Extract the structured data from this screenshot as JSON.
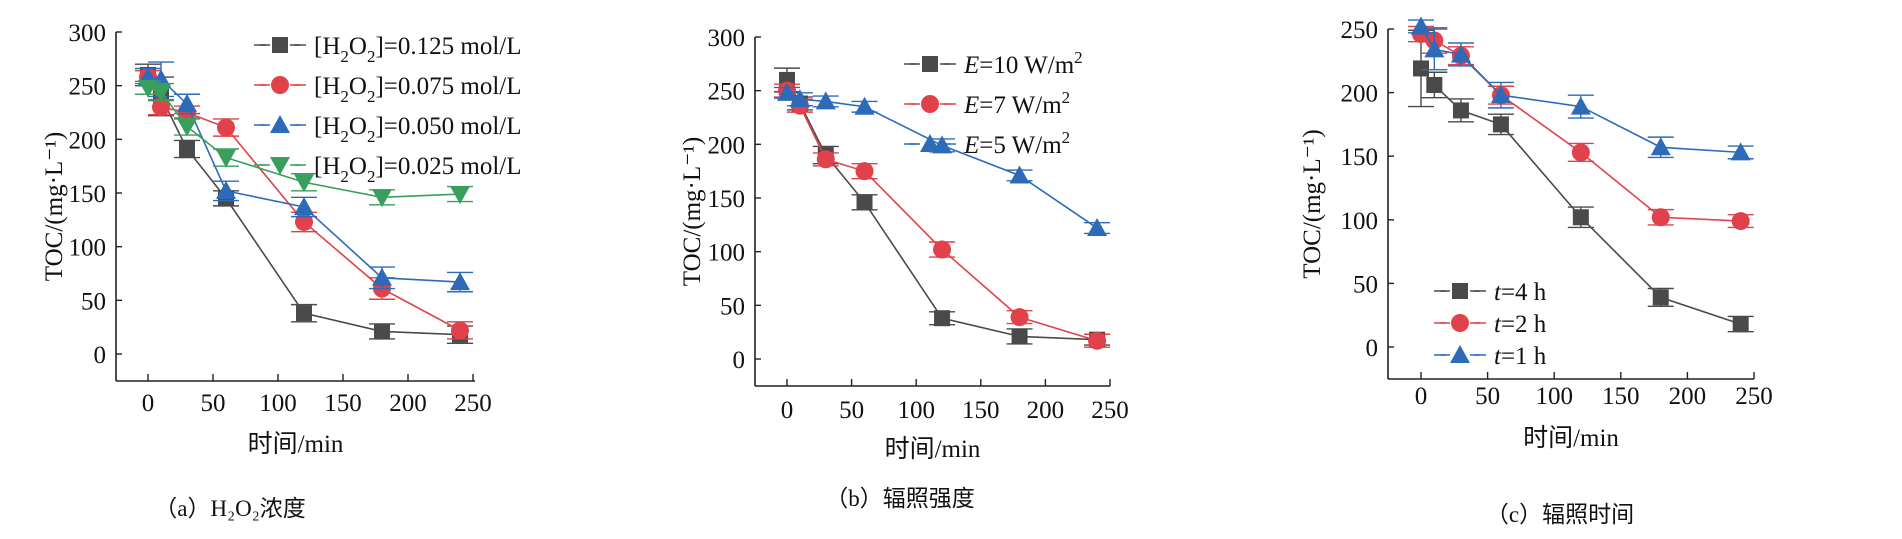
{
  "chart_data": [
    {
      "type": "line",
      "panel": "a",
      "caption": "（a）H₂O₂浓度",
      "xlabel": "时间/min",
      "ylabel": "TOC/(mg·L⁻¹)",
      "xlim": [
        -12,
        250
      ],
      "ylim": [
        -25,
        300
      ],
      "xticks": [
        0,
        50,
        100,
        150,
        200,
        250
      ],
      "yticks": [
        0,
        50,
        100,
        150,
        200,
        250,
        300
      ],
      "legend_position": "top-right",
      "x": [
        0,
        10,
        30,
        60,
        120,
        180,
        240
      ],
      "series": [
        {
          "name": "[H2O2]=0.125 mol/L",
          "label_main": "[H",
          "label_sub1": "2",
          "label_mid": "O",
          "label_sub2": "2",
          "label_end": "]=0.125 mol/L",
          "marker": "square",
          "color": "#4a4a4a",
          "values": [
            260,
            240,
            191,
            145,
            38,
            21,
            18
          ],
          "error": [
            10,
            18,
            8,
            7,
            8,
            7,
            8
          ]
        },
        {
          "name": "[H2O2]=0.075 mol/L",
          "label_main": "[H",
          "label_sub1": "2",
          "label_mid": "O",
          "label_sub2": "2",
          "label_end": "]=0.075 mol/L",
          "marker": "circle",
          "color": "#e0414a",
          "values": [
            258,
            230,
            225,
            211,
            123,
            61,
            22
          ],
          "error": [
            6,
            7,
            6,
            8,
            9,
            10,
            8
          ]
        },
        {
          "name": "[H2O2]=0.050 mol/L",
          "label_main": "[H",
          "label_sub1": "2",
          "label_mid": "O",
          "label_sub2": "2",
          "label_end": "]=0.050 mol/L",
          "marker": "triangle-up",
          "color": "#2d6bb8",
          "values": [
            258,
            256,
            233,
            152,
            137,
            71,
            67
          ],
          "error": [
            8,
            16,
            9,
            9,
            9,
            10,
            9
          ]
        },
        {
          "name": "[H2O2]=0.025 mol/L",
          "label_main": "[H",
          "label_sub1": "2",
          "label_mid": "O",
          "label_sub2": "2",
          "label_end": "]=0.025 mol/L",
          "marker": "triangle-down",
          "color": "#3a9e5c",
          "values": [
            248,
            244,
            212,
            183,
            160,
            146,
            149
          ],
          "error": [
            6,
            8,
            8,
            8,
            8,
            7,
            7
          ]
        }
      ]
    },
    {
      "type": "line",
      "panel": "b",
      "caption": "（b）辐照强度",
      "xlabel": "时间/min",
      "ylabel": "TOC/(mg·L⁻¹)",
      "xlim": [
        -12,
        250
      ],
      "ylim": [
        -25,
        300
      ],
      "xticks": [
        0,
        50,
        100,
        150,
        200,
        250
      ],
      "yticks": [
        0,
        50,
        100,
        150,
        200,
        250,
        300
      ],
      "legend_position": "top-right",
      "x": [
        0,
        10,
        30,
        60,
        120,
        180,
        240
      ],
      "series": [
        {
          "name": "E=10 W/m2",
          "label_main": "E",
          "label_end": "=10 W/m",
          "label_sup": "2",
          "marker": "square",
          "color": "#4a4a4a",
          "values": [
            260,
            238,
            190,
            146,
            38,
            21,
            18
          ],
          "error": [
            11,
            6,
            8,
            7,
            6,
            7,
            5
          ]
        },
        {
          "name": "E=7 W/m2",
          "label_main": "E",
          "label_end": "=7 W/m",
          "label_sup": "2",
          "marker": "circle",
          "color": "#e0414a",
          "values": [
            250,
            236,
            186,
            175,
            102,
            39,
            17
          ],
          "error": [
            6,
            6,
            6,
            7,
            7,
            6,
            6
          ]
        },
        {
          "name": "E=5 W/m2",
          "label_main": "E",
          "label_end": "=5 W/m",
          "label_sup": "2",
          "marker": "triangle-up",
          "color": "#2d6bb8",
          "values": [
            248,
            242,
            240,
            235,
            199,
            171,
            122
          ],
          "error": [
            5,
            6,
            5,
            5,
            6,
            5,
            5
          ]
        }
      ]
    },
    {
      "type": "line",
      "panel": "c",
      "caption": "（c）辐照时间",
      "xlabel": "时间/min",
      "ylabel": "TOC/(mg·L⁻¹)",
      "xlim": [
        -12,
        250
      ],
      "ylim": [
        -25,
        250
      ],
      "xticks": [
        0,
        50,
        100,
        150,
        200,
        250
      ],
      "yticks": [
        0,
        50,
        100,
        150,
        200,
        250
      ],
      "legend_position": "bottom-left",
      "x": [
        0,
        10,
        30,
        60,
        120,
        180,
        240
      ],
      "series": [
        {
          "name": "t=4 h",
          "label_main": "t",
          "label_end": "=4 h",
          "marker": "square",
          "color": "#4a4a4a",
          "values": [
            219,
            206,
            186,
            175,
            102,
            39,
            18
          ],
          "error": [
            30,
            10,
            9,
            8,
            8,
            7,
            6
          ]
        },
        {
          "name": "t=2 h",
          "label_main": "t",
          "label_end": "=2 h",
          "marker": "circle",
          "color": "#e0414a",
          "values": [
            246,
            241,
            229,
            198,
            153,
            102,
            99
          ],
          "error": [
            6,
            10,
            7,
            7,
            7,
            6,
            5
          ]
        },
        {
          "name": "t=1 h",
          "label_main": "t",
          "label_end": "=1 h",
          "marker": "triangle-up",
          "color": "#2d6bb8",
          "values": [
            252,
            234,
            230,
            198,
            189,
            157,
            153
          ],
          "error": [
            5,
            16,
            9,
            10,
            9,
            8,
            5
          ]
        }
      ]
    }
  ]
}
